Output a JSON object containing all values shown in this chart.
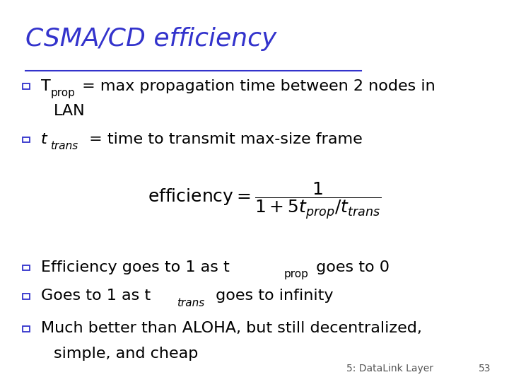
{
  "title": "CSMA/CD efficiency",
  "title_color": "#3333CC",
  "title_fontsize": 26,
  "background_color": "#FFFFFF",
  "text_color": "#000000",
  "bullet_color": "#3333CC",
  "footer_text": "5: DataLink Layer",
  "footer_number": "53",
  "footer_fontsize": 10,
  "bullet_size": 8,
  "main_fontsize": 16,
  "sub_fontsize": 11,
  "formula_fontsize": 18
}
